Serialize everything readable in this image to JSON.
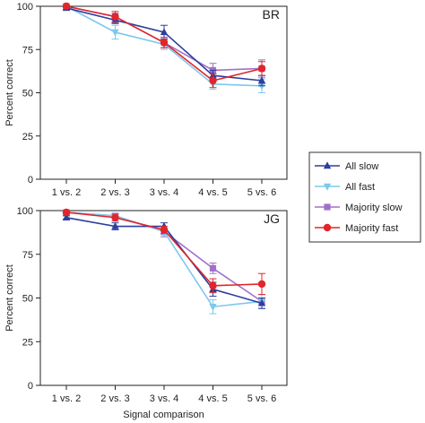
{
  "chart_data": [
    {
      "type": "line",
      "panel_label": "BR",
      "categories": [
        "1 vs. 2",
        "2 vs. 3",
        "3 vs. 4",
        "4 vs. 5",
        "5 vs. 6"
      ],
      "ylabel": "Percent correct",
      "xlabel": "",
      "ylim": [
        0,
        100
      ],
      "yticks": [
        0,
        25,
        50,
        75,
        100
      ],
      "series": [
        {
          "name": "All slow",
          "values": [
            99,
            92,
            85,
            60,
            57
          ],
          "errors": [
            1,
            2,
            4,
            3,
            3
          ]
        },
        {
          "name": "All fast",
          "values": [
            100,
            85,
            78,
            55,
            54
          ],
          "errors": [
            1,
            4,
            3,
            3,
            4
          ]
        },
        {
          "name": "Majority slow",
          "values": [
            100,
            94,
            79,
            63,
            64
          ],
          "errors": [
            1,
            2,
            3,
            4,
            5
          ]
        },
        {
          "name": "Majority fast",
          "values": [
            100,
            94,
            79,
            57,
            64
          ],
          "errors": [
            1,
            3,
            3,
            4,
            4
          ]
        }
      ]
    },
    {
      "type": "line",
      "panel_label": "JG",
      "categories": [
        "1 vs. 2",
        "2 vs. 3",
        "3 vs. 4",
        "4 vs. 5",
        "5 vs. 6"
      ],
      "ylabel": "Percent correct",
      "xlabel": "Signal comparison",
      "ylim": [
        0,
        100
      ],
      "yticks": [
        0,
        25,
        50,
        75,
        100
      ],
      "series": [
        {
          "name": "All slow",
          "values": [
            96,
            91,
            91,
            55,
            47
          ],
          "errors": [
            1,
            2,
            2,
            4,
            3
          ]
        },
        {
          "name": "All fast",
          "values": [
            99,
            97,
            88,
            45,
            48
          ],
          "errors": [
            1,
            1,
            2,
            4,
            4
          ]
        },
        {
          "name": "Majority slow",
          "values": [
            99,
            97,
            88,
            67,
            48
          ],
          "errors": [
            1,
            1,
            3,
            3,
            4
          ]
        },
        {
          "name": "Majority fast",
          "values": [
            99,
            96,
            89,
            57,
            58
          ],
          "errors": [
            1,
            2,
            2,
            4,
            6
          ]
        }
      ]
    }
  ],
  "legend": {
    "placement": "right",
    "items": [
      {
        "label": "All slow",
        "color": "#2b3f9e",
        "marker": "triangle-up"
      },
      {
        "label": "All fast",
        "color": "#7ec8ec",
        "marker": "triangle-down"
      },
      {
        "label": "Majority slow",
        "color": "#a070c8",
        "marker": "square"
      },
      {
        "label": "Majority fast",
        "color": "#e0252b",
        "marker": "circle"
      }
    ]
  },
  "colors": {
    "All slow": "#2b3f9e",
    "All fast": "#7ec8ec",
    "Majority slow": "#a070c8",
    "Majority fast": "#e0252b"
  },
  "markers": {
    "All slow": "triangle-up",
    "All fast": "triangle-down",
    "Majority slow": "square",
    "Majority fast": "circle"
  }
}
